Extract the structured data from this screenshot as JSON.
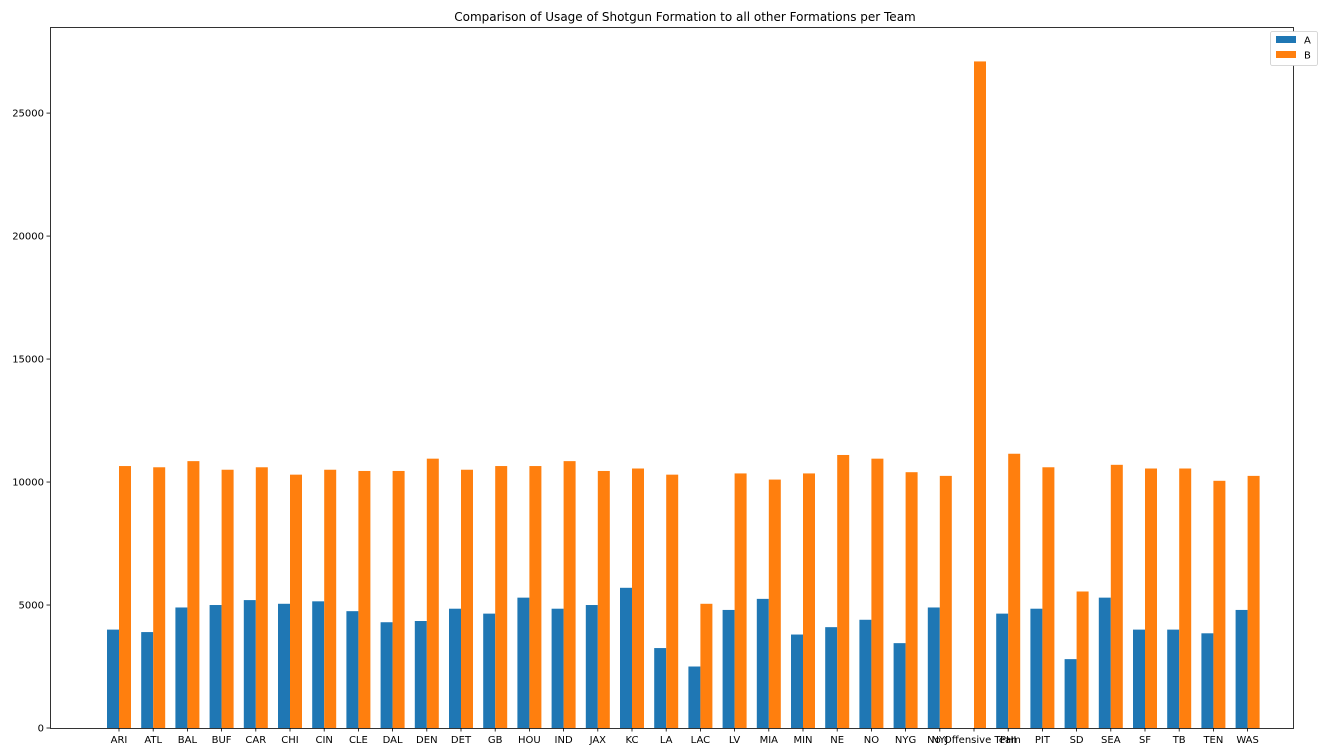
{
  "chart_data": {
    "type": "bar",
    "title": "Comparison of Usage of Shotgun Formation to all other Formations per Team",
    "xlabel": "",
    "ylabel": "",
    "ylim": [
      0,
      28500
    ],
    "yticks": [
      0,
      5000,
      10000,
      15000,
      20000,
      25000
    ],
    "legend_position": "top-right",
    "colors": {
      "A": "#1f77b4",
      "B": "#ff7f0e"
    },
    "categories": [
      "ARI",
      "ATL",
      "BAL",
      "BUF",
      "CAR",
      "CHI",
      "CIN",
      "CLE",
      "DAL",
      "DEN",
      "DET",
      "GB",
      "HOU",
      "IND",
      "JAX",
      "KC",
      "LA",
      "LAC",
      "LV",
      "MIA",
      "MIN",
      "NE",
      "NO",
      "NYG",
      "NYJ",
      "No Offensive Team",
      "PHI",
      "PIT",
      "SD",
      "SEA",
      "SF",
      "TB",
      "TEN",
      "WAS"
    ],
    "series": [
      {
        "name": "A",
        "values": [
          4000,
          3900,
          4900,
          5000,
          5200,
          5050,
          5150,
          4750,
          4300,
          4350,
          4850,
          4650,
          5300,
          4850,
          5000,
          5700,
          3250,
          2500,
          4800,
          5250,
          3800,
          4100,
          4400,
          3450,
          4900,
          0,
          4650,
          4850,
          2800,
          5300,
          4000,
          4000,
          3850,
          4800
        ]
      },
      {
        "name": "B",
        "values": [
          10650,
          10600,
          10850,
          10500,
          10600,
          10300,
          10500,
          10450,
          10450,
          10950,
          10500,
          10650,
          10650,
          10850,
          10450,
          10550,
          10300,
          5050,
          10350,
          10100,
          10350,
          11100,
          10950,
          10400,
          10250,
          27100,
          11150,
          10600,
          5550,
          10700,
          10550,
          10550,
          10050,
          10250
        ]
      }
    ]
  }
}
